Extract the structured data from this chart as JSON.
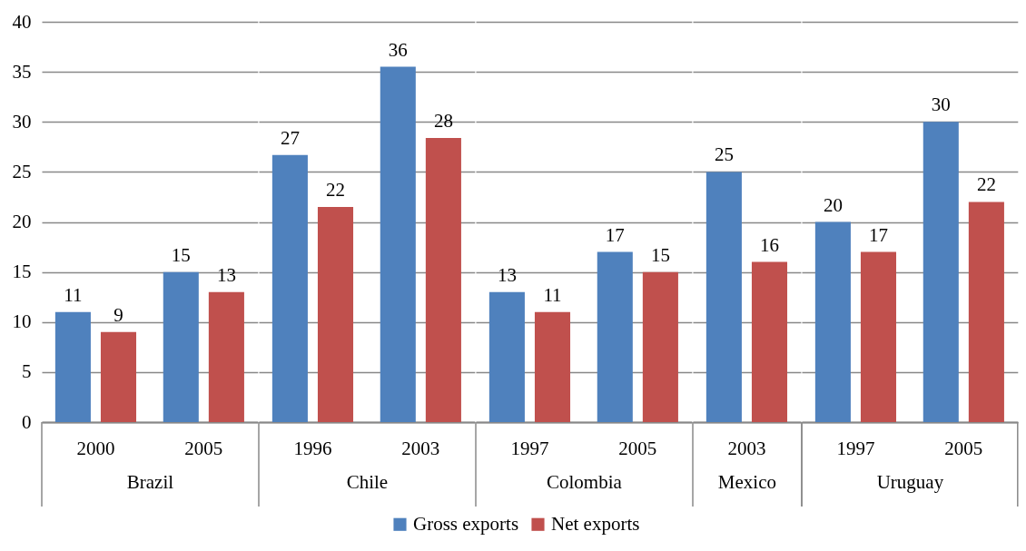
{
  "chart_data": [
    {
      "type": "bar",
      "xlabel": "Brazil",
      "categories": [
        "2000",
        "2005"
      ],
      "series": [
        {
          "name": "Gross exports",
          "color": "#4f81bd",
          "values": [
            11,
            15
          ],
          "value_labels": [
            "11",
            "15"
          ]
        },
        {
          "name": "Net exports",
          "color": "#c0504d",
          "values": [
            9,
            13
          ],
          "value_labels": [
            "9",
            "13"
          ]
        }
      ],
      "ylim": [
        0,
        40
      ],
      "yticks": [
        0,
        5,
        10,
        15,
        20,
        25,
        30,
        35,
        40
      ],
      "grid": "y",
      "legend": "bottom"
    },
    {
      "type": "bar",
      "xlabel": "Chile",
      "categories": [
        "1996",
        "2003"
      ],
      "series": [
        {
          "name": "Gross exports",
          "color": "#4f81bd",
          "values": [
            26.7,
            35.5
          ],
          "value_labels": [
            "27",
            "36"
          ]
        },
        {
          "name": "Net exports",
          "color": "#c0504d",
          "values": [
            21.5,
            28.4
          ],
          "value_labels": [
            "22",
            "28"
          ]
        }
      ],
      "ylim": [
        0,
        40
      ],
      "yticks": [
        0,
        5,
        10,
        15,
        20,
        25,
        30,
        35,
        40
      ],
      "grid": "y",
      "legend": "bottom",
      "tick_labels": "x"
    },
    {
      "type": "bar",
      "xlabel": "Colombia",
      "categories": [
        "1997",
        "2005"
      ],
      "series": [
        {
          "name": "Gross exports",
          "color": "#4f81bd",
          "values": [
            13,
            17
          ],
          "value_labels": [
            "13",
            "17"
          ]
        },
        {
          "name": "Net exports",
          "color": "#c0504d",
          "values": [
            11,
            15
          ],
          "value_labels": [
            "11",
            "15"
          ]
        }
      ],
      "ylim": [
        0,
        40
      ],
      "yticks": [
        0,
        5,
        10,
        15,
        20,
        25,
        30,
        35,
        40
      ],
      "grid": "y",
      "legend": "bottom",
      "tick_labels": "x"
    },
    {
      "type": "bar",
      "xlabel": "Mexico",
      "categories": [
        "2003"
      ],
      "series": [
        {
          "name": "Gross exports",
          "color": "#4f81bd",
          "values": [
            25
          ],
          "value_labels": [
            "25"
          ]
        },
        {
          "name": "Net exports",
          "color": "#c0504d",
          "values": [
            16
          ],
          "value_labels": [
            "16"
          ]
        }
      ],
      "ylim": [
        0,
        40
      ],
      "yticks": [
        0,
        5,
        10,
        15,
        20,
        25,
        30,
        35,
        40
      ],
      "grid": "y",
      "legend": "bottom",
      "tick_labels": "x"
    },
    {
      "type": "bar",
      "xlabel": "Uruguay",
      "categories": [
        "1997",
        "2005"
      ],
      "series": [
        {
          "name": "Gross exports",
          "color": "#4f81bd",
          "values": [
            20,
            30
          ],
          "value_labels": [
            "20",
            "30"
          ]
        },
        {
          "name": "Net exports",
          "color": "#c0504d",
          "values": [
            17,
            22
          ],
          "value_labels": [
            "17",
            "22"
          ]
        }
      ],
      "ylim": [
        0,
        40
      ],
      "yticks": [
        0,
        5,
        10,
        15,
        20,
        25,
        30,
        35,
        40
      ],
      "grid": "y",
      "legend": "bottom",
      "tick_labels": "x"
    }
  ]
}
